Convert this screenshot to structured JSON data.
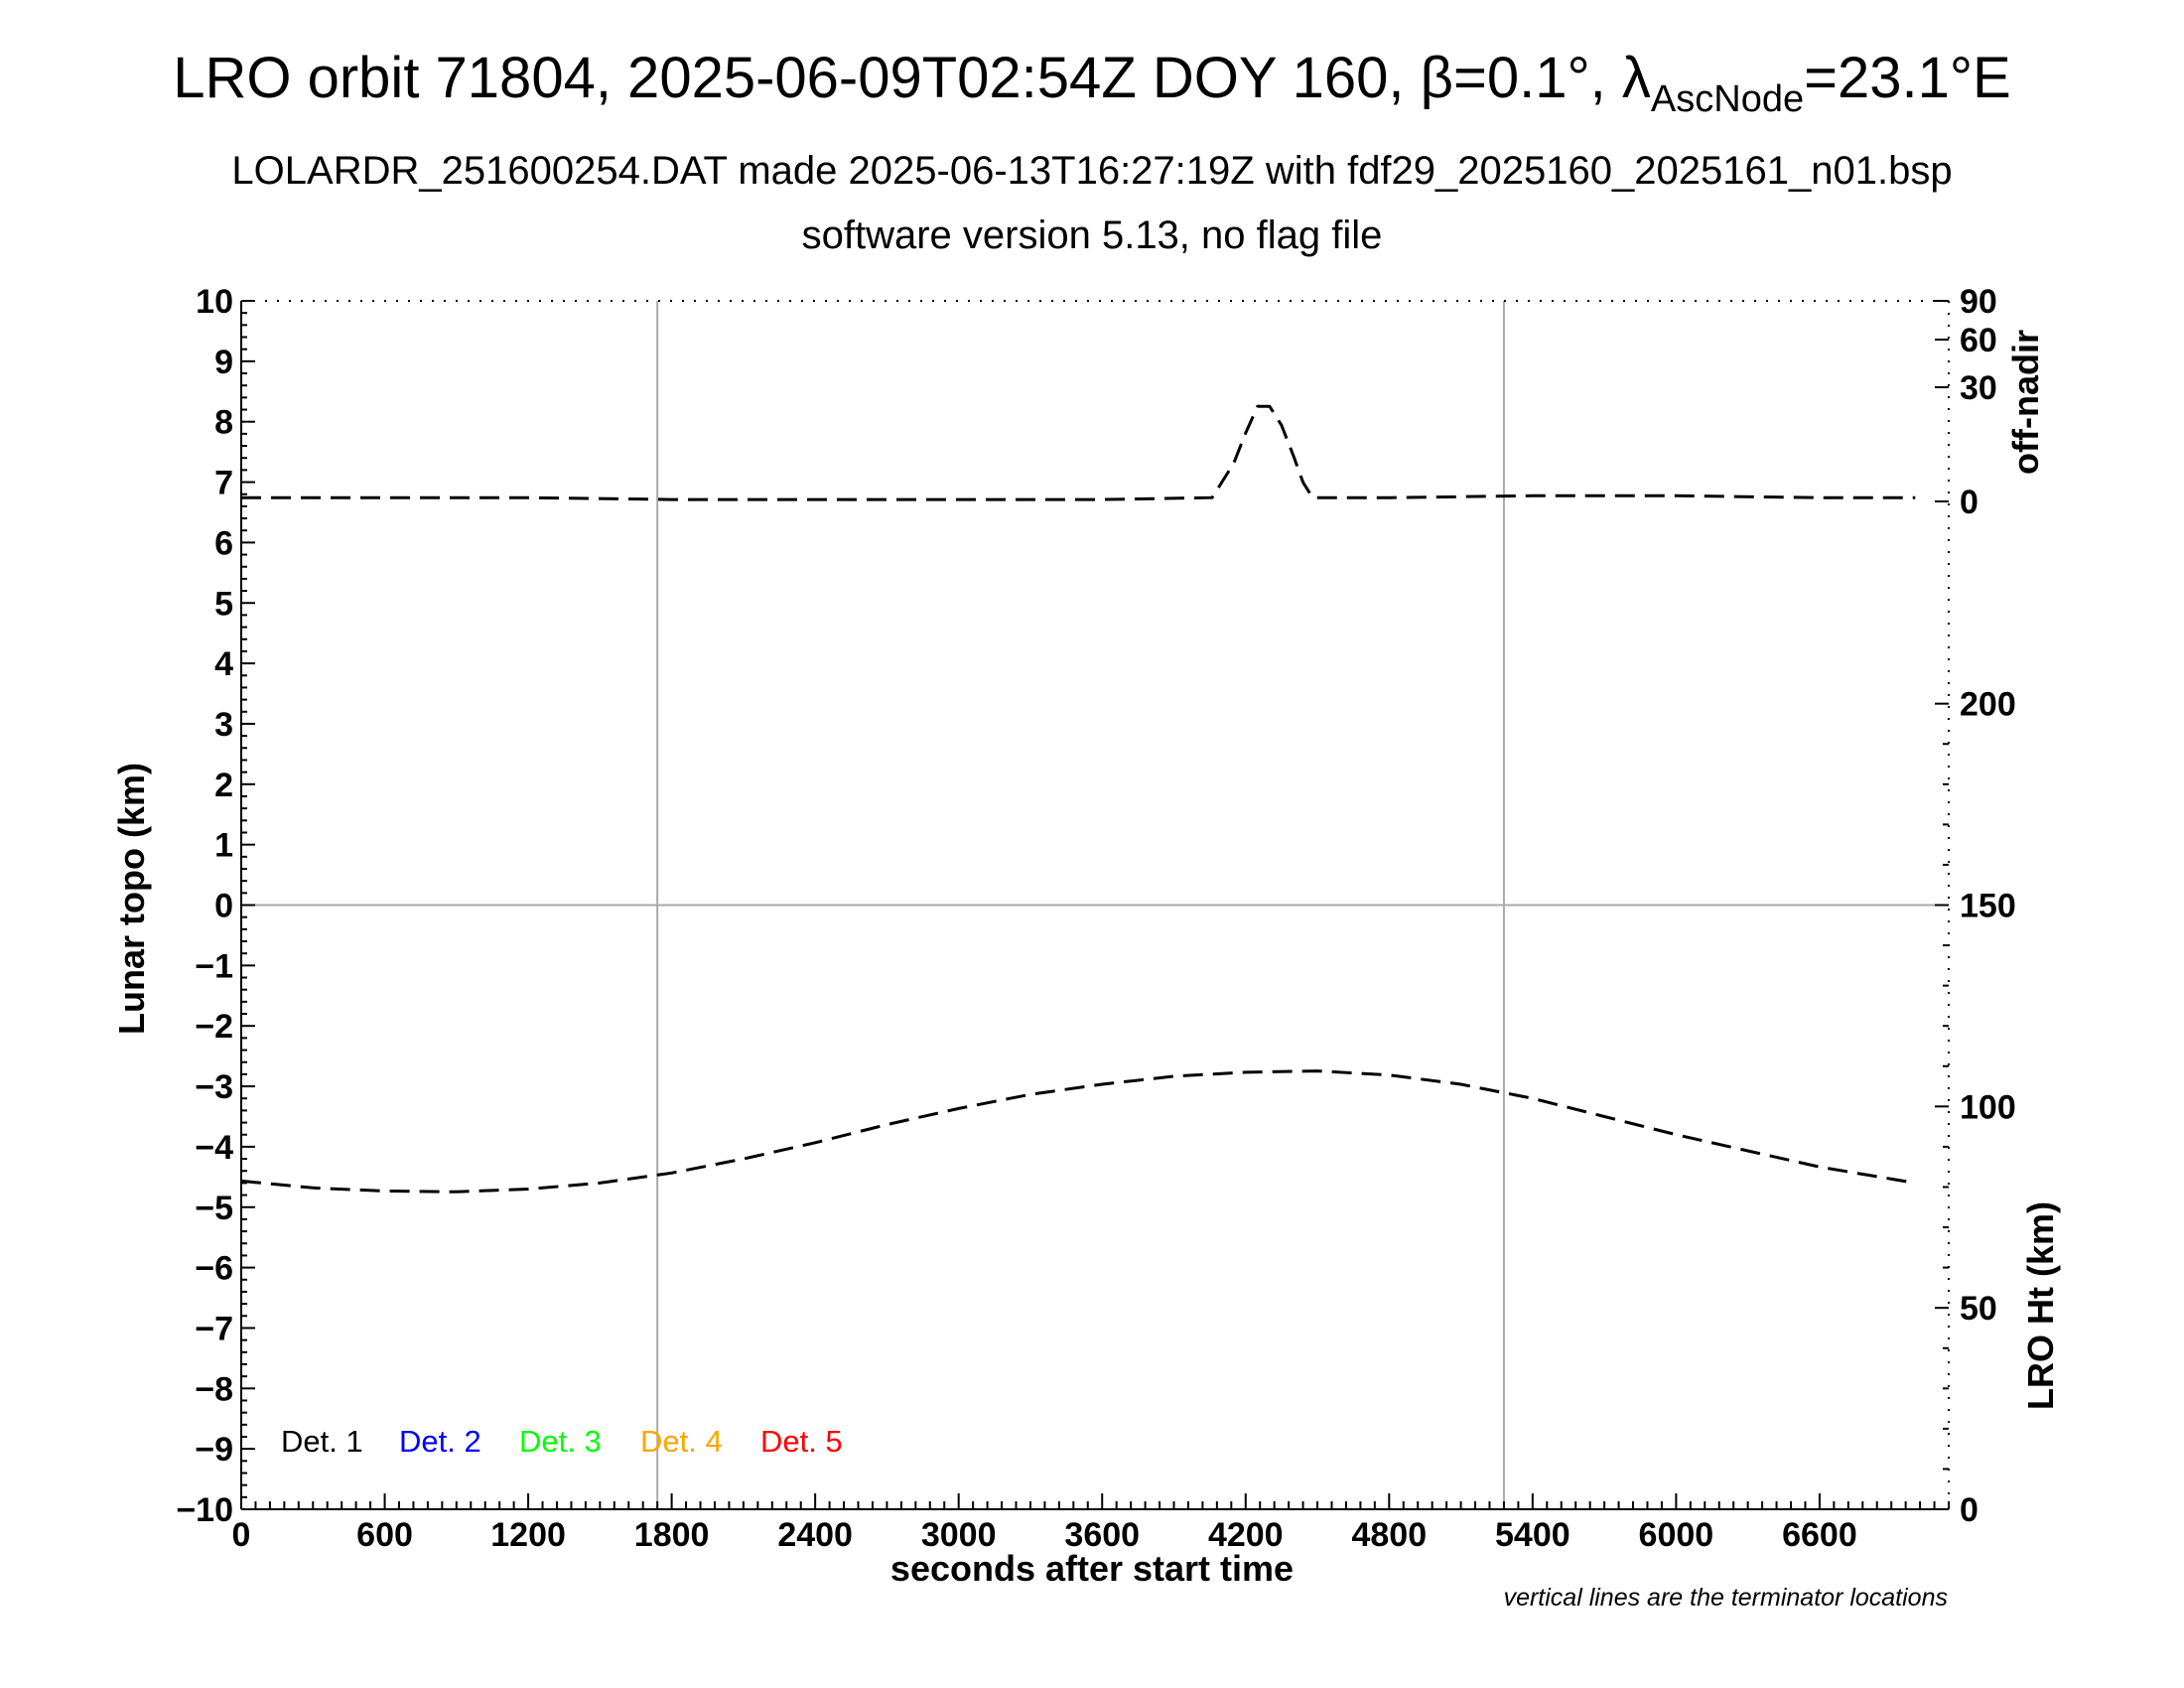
{
  "header": {
    "title_main": "LRO orbit 71804, 2025-06-09T02:54Z DOY 160, β=0.1°, λ",
    "title_sub": "AscNode",
    "title_end": "=23.1°E",
    "subtitle1": "LOLARDR_251600254.DAT made 2025-06-13T16:27:19Z with fdf29_2025160_2025161_n01.bsp",
    "subtitle2": "software version 5.13, no flag file"
  },
  "chart_data": {
    "type": "line",
    "xlabel": "seconds after start time",
    "ylabel_left": "Lunar topo (km)",
    "ylabel_right_top": "off-nadir",
    "ylabel_right_bottom": "LRO Ht (km)",
    "note": "vertical lines are the terminator locations",
    "xlim": [
      0,
      7140
    ],
    "xticks": [
      "0",
      "600",
      "1200",
      "1800",
      "2400",
      "3000",
      "3600",
      "4200",
      "4800",
      "5400",
      "6000",
      "6600"
    ],
    "ylim_left": [
      -10,
      10
    ],
    "yticks_left": [
      "10",
      "9",
      "8",
      "7",
      "6",
      "5",
      "4",
      "3",
      "2",
      "1",
      "0",
      "−1",
      "−2",
      "−3",
      "−4",
      "−5",
      "−6",
      "−7",
      "−8",
      "−9",
      "−10"
    ],
    "yticks_right_top": [
      "90",
      "60",
      "30",
      "0"
    ],
    "yticks_right_bottom": [
      "200",
      "150",
      "100",
      "50",
      "0"
    ],
    "ylim_right_bottom": [
      0,
      300
    ],
    "terminators": [
      1740,
      5280
    ],
    "legend": [
      {
        "label": "Det. 1",
        "color": "#000000"
      },
      {
        "label": "Det. 2",
        "color": "#0000ff"
      },
      {
        "label": "Det. 3",
        "color": "#00ff00"
      },
      {
        "label": "Det. 4",
        "color": "#ffa500"
      },
      {
        "label": "Det. 5",
        "color": "#ff0000"
      }
    ],
    "series": [
      {
        "axis": "off-nadir",
        "x": [
          0,
          600,
          1200,
          1800,
          2400,
          3000,
          3600,
          4060,
          4100,
          4150,
          4200,
          4250,
          4300,
          4350,
          4400,
          4440,
          4480,
          4800,
          5400,
          6000,
          6600,
          7000
        ],
        "values": [
          1,
          1,
          1,
          0.5,
          0.5,
          0.5,
          0.5,
          1,
          5,
          10,
          18,
          25,
          25,
          20,
          12,
          5,
          1,
          1,
          1.5,
          1.5,
          1,
          1
        ]
      },
      {
        "axis": "LRO Ht (km)",
        "x": [
          0,
          300,
          600,
          900,
          1200,
          1500,
          1800,
          2100,
          2400,
          2700,
          3000,
          3300,
          3600,
          3900,
          4200,
          4500,
          4800,
          5100,
          5400,
          5700,
          6000,
          6300,
          6600,
          7000
        ],
        "values": [
          81.5,
          79.8,
          79,
          78.8,
          79.5,
          81,
          83.5,
          87,
          91,
          95.5,
          99.5,
          103,
          105.5,
          107.5,
          108.5,
          108.8,
          107.8,
          105.5,
          102,
          97.5,
          93,
          89,
          85,
          81
        ]
      }
    ]
  }
}
